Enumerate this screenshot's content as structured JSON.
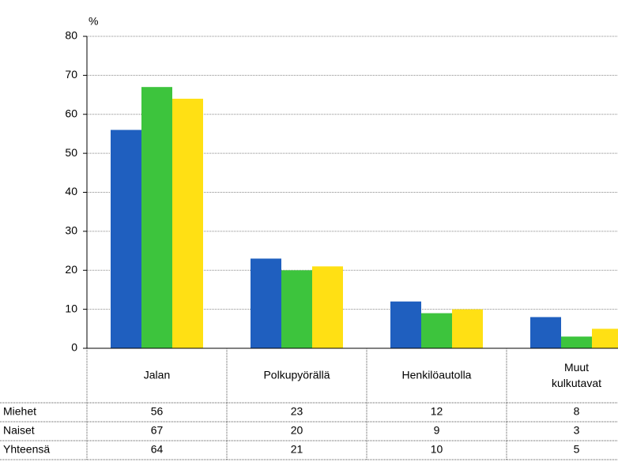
{
  "chart_data": {
    "type": "bar",
    "y_label": "%",
    "categories": [
      "Jalan",
      "Polkupyörällä",
      "Henkilöautolla",
      "Muut kulkutavat"
    ],
    "series": [
      {
        "name": "Miehet",
        "color": "#1f5fbf",
        "values": [
          56,
          23,
          12,
          8
        ]
      },
      {
        "name": "Naiset",
        "color": "#3dc43d",
        "values": [
          67,
          20,
          9,
          3
        ]
      },
      {
        "name": "Yhteensä",
        "color": "#ffe014",
        "values": [
          64,
          21,
          10,
          5
        ]
      }
    ],
    "ylim": [
      0,
      80
    ],
    "yticks": [
      0,
      10,
      20,
      30,
      40,
      50,
      60,
      70,
      80
    ],
    "grid": true
  }
}
